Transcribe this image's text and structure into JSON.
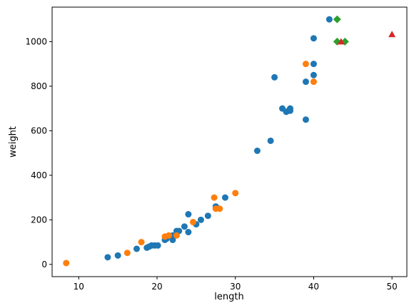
{
  "chart_data": {
    "type": "scatter",
    "title": "",
    "xlabel": "length",
    "ylabel": "weight",
    "xlim": [
      6.6,
      51.9
    ],
    "ylim": [
      -55,
      1155
    ],
    "xticks": [
      10,
      20,
      30,
      40,
      50
    ],
    "yticks": [
      0,
      200,
      400,
      600,
      800,
      1000
    ],
    "grid": false,
    "legend": "none",
    "series": [
      {
        "marker": "circle",
        "color": "#1f77b4",
        "x": [
          13.7,
          15.0,
          17.4,
          18.7,
          19.0,
          19.3,
          19.7,
          20.1,
          21.0,
          21.2,
          21.3,
          22.0,
          22.0,
          22.5,
          22.8,
          23.5,
          24.0,
          24.0,
          25.0,
          25.6,
          26.5,
          27.5,
          28.7,
          32.8,
          34.5,
          35.0,
          36.0,
          36.5,
          36.8,
          37.0,
          37.0,
          39.0,
          39.0,
          40.0,
          40.0,
          40.0,
          42.0
        ],
        "y": [
          32,
          40,
          70,
          75,
          80,
          85,
          85,
          85,
          110,
          115,
          125,
          110,
          130,
          150,
          150,
          170,
          145,
          225,
          180,
          200,
          218,
          260,
          300,
          510,
          555,
          840,
          700,
          685,
          690,
          700,
          690,
          820,
          650,
          850,
          900,
          1015,
          1100
        ]
      },
      {
        "marker": "circle",
        "color": "#ff7f0e",
        "x": [
          8.4,
          16.2,
          18.0,
          21.0,
          21.5,
          22.5,
          24.6,
          27.3,
          27.5,
          28.0,
          30.0,
          39.0,
          40.0
        ],
        "y": [
          5.9,
          51.5,
          100,
          125,
          130,
          130,
          190,
          300,
          250,
          250,
          320,
          900,
          820
        ]
      },
      {
        "marker": "diamond",
        "color": "#2ca02c",
        "x": [
          43.0,
          43.0,
          44.0
        ],
        "y": [
          1100,
          1000,
          1000
        ]
      },
      {
        "marker": "triangle",
        "color": "#d62728",
        "x": [
          43.5,
          50.0
        ],
        "y": [
          1000,
          1033
        ]
      }
    ]
  }
}
